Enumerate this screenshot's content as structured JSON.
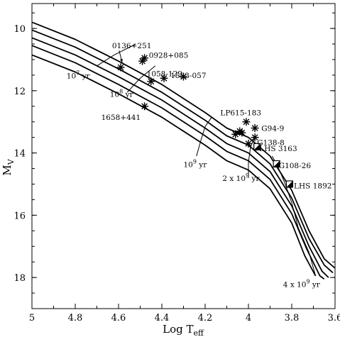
{
  "chart_data": {
    "type": "line",
    "xlabel": "Log T",
    "xlabel_sub": "eff",
    "ylabel": "M",
    "ylabel_sub": "V",
    "xlim": [
      5.0,
      3.6
    ],
    "ylim": [
      19.0,
      9.2
    ],
    "x_reversed": true,
    "y_reversed": true,
    "x_ticks": [
      5,
      4.8,
      4.6,
      4.4,
      4.2,
      4,
      3.8,
      3.6
    ],
    "x_tick_labels": [
      "5",
      "4.8",
      "4.6",
      "4.4",
      "4.2",
      "4",
      "3.8",
      "3.6"
    ],
    "y_ticks": [
      10,
      12,
      14,
      16,
      18
    ],
    "y_tick_labels": [
      "10",
      "12",
      "14",
      "16",
      "18"
    ],
    "grid": false,
    "legend": "none",
    "cooling_tracks": [
      {
        "points": [
          [
            5.0,
            9.8
          ],
          [
            4.8,
            10.35
          ],
          [
            4.6,
            11.05
          ],
          [
            4.4,
            11.8
          ],
          [
            4.2,
            12.7
          ],
          [
            4.1,
            13.2
          ],
          [
            4.0,
            13.5
          ],
          [
            3.9,
            14.1
          ],
          [
            3.8,
            15.2
          ],
          [
            3.72,
            16.5
          ],
          [
            3.65,
            17.4
          ],
          [
            3.6,
            17.7
          ]
        ]
      },
      {
        "points": [
          [
            5.0,
            10.05
          ],
          [
            4.8,
            10.6
          ],
          [
            4.6,
            11.3
          ],
          [
            4.4,
            12.05
          ],
          [
            4.2,
            12.95
          ],
          [
            4.1,
            13.45
          ],
          [
            4.0,
            13.75
          ],
          [
            3.9,
            14.35
          ],
          [
            3.8,
            15.45
          ],
          [
            3.72,
            16.75
          ],
          [
            3.65,
            17.6
          ],
          [
            3.61,
            17.85
          ]
        ]
      },
      {
        "points": [
          [
            5.0,
            10.3
          ],
          [
            4.8,
            10.85
          ],
          [
            4.6,
            11.55
          ],
          [
            4.4,
            12.3
          ],
          [
            4.2,
            13.2
          ],
          [
            4.1,
            13.7
          ],
          [
            4.0,
            14.0
          ],
          [
            3.9,
            14.6
          ],
          [
            3.8,
            15.7
          ],
          [
            3.72,
            17.0
          ],
          [
            3.66,
            17.8
          ],
          [
            3.63,
            18.0
          ]
        ]
      },
      {
        "points": [
          [
            5.0,
            10.55
          ],
          [
            4.8,
            11.1
          ],
          [
            4.6,
            11.8
          ],
          [
            4.4,
            12.55
          ],
          [
            4.2,
            13.45
          ],
          [
            4.1,
            13.95
          ],
          [
            4.0,
            14.25
          ],
          [
            3.9,
            14.85
          ],
          [
            3.8,
            15.95
          ],
          [
            3.73,
            17.1
          ],
          [
            3.67,
            17.95
          ],
          [
            3.65,
            18.05
          ]
        ]
      },
      {
        "points": [
          [
            5.0,
            10.85
          ],
          [
            4.8,
            11.4
          ],
          [
            4.6,
            12.1
          ],
          [
            4.4,
            12.85
          ],
          [
            4.2,
            13.75
          ],
          [
            4.1,
            14.25
          ],
          [
            4.0,
            14.55
          ],
          [
            3.9,
            15.15
          ],
          [
            3.8,
            16.25
          ],
          [
            3.74,
            17.3
          ],
          [
            3.69,
            17.95
          ]
        ]
      }
    ],
    "isochrones": [
      {
        "label": "10",
        "label_exp": "7",
        "label_unit": " yr",
        "label_at": [
          4.84,
          11.6
        ],
        "points": [
          [
            4.7,
            11.2
          ],
          [
            4.62,
            10.85
          ],
          [
            4.52,
            10.5
          ]
        ]
      },
      {
        "label": "10",
        "label_exp": "8",
        "label_unit": " yr",
        "label_at": [
          4.64,
          12.2
        ],
        "points": [
          [
            4.56,
            12.05
          ],
          [
            4.5,
            11.6
          ],
          [
            4.43,
            11.2
          ]
        ]
      },
      {
        "label": "10",
        "label_exp": "9",
        "label_unit": " yr",
        "label_at": [
          4.3,
          14.45
        ],
        "points": [
          [
            4.24,
            14.1
          ],
          [
            4.22,
            13.6
          ],
          [
            4.2,
            13.15
          ],
          [
            4.17,
            12.85
          ]
        ]
      },
      {
        "label": "2 x 10",
        "label_exp": "9",
        "label_unit": " yr",
        "label_at": [
          4.12,
          14.9
        ],
        "points": [
          [
            4.0,
            14.8
          ],
          [
            4.0,
            14.3
          ],
          [
            3.99,
            13.8
          ],
          [
            3.97,
            13.5
          ]
        ]
      },
      {
        "label": "4 x 10",
        "label_exp": "9",
        "label_unit": " yr",
        "label_at": [
          3.84,
          18.3
        ],
        "points": [
          [
            3.69,
            17.95
          ],
          [
            3.72,
            17.2
          ],
          [
            3.77,
            16.4
          ],
          [
            3.8,
            15.6
          ],
          [
            3.83,
            15.0
          ],
          [
            3.86,
            14.5
          ],
          [
            3.89,
            14.1
          ]
        ]
      }
    ],
    "stars": [
      {
        "name": "0136+251",
        "x": 4.59,
        "y": 11.25,
        "marker": "asterisk",
        "label_at": [
          4.63,
          10.55
        ],
        "arrow": true
      },
      {
        "name": "0928+085",
        "x": 4.48,
        "y": 10.95,
        "marker": "asterisk",
        "label_at": [
          4.46,
          10.85
        ]
      },
      {
        "name": "",
        "x": 4.49,
        "y": 11.05,
        "marker": "asterisk"
      },
      {
        "name": "1058-129",
        "x": 4.45,
        "y": 11.7,
        "marker": "asterisk",
        "label_at": [
          4.47,
          11.45
        ]
      },
      {
        "name": "",
        "x": 4.39,
        "y": 11.6,
        "marker": "asterisk"
      },
      {
        "name": "1533-057",
        "x": 4.3,
        "y": 11.55,
        "marker": "asterisk",
        "label_at": [
          4.36,
          11.5
        ]
      },
      {
        "name": "1658+441",
        "x": 4.48,
        "y": 12.5,
        "marker": "asterisk",
        "label_at": [
          4.68,
          12.85
        ]
      },
      {
        "name": "LP615-183",
        "x": 4.01,
        "y": 13.0,
        "marker": "asterisk",
        "label_at": [
          4.13,
          12.7
        ]
      },
      {
        "name": "",
        "x": 4.04,
        "y": 13.3,
        "marker": "asterisk"
      },
      {
        "name": "",
        "x": 4.06,
        "y": 13.4,
        "marker": "asterisk"
      },
      {
        "name": "",
        "x": 4.03,
        "y": 13.35,
        "marker": "asterisk"
      },
      {
        "name": "G94-9",
        "x": 3.97,
        "y": 13.2,
        "marker": "asterisk",
        "label_at": [
          3.94,
          13.2
        ]
      },
      {
        "name": "G138-8",
        "x": 3.97,
        "y": 13.5,
        "marker": "asterisk",
        "label_at": [
          3.96,
          13.65
        ]
      },
      {
        "name": "",
        "x": 4.0,
        "y": 13.7,
        "marker": "asterisk"
      },
      {
        "name": "LHS 3163",
        "x": 3.96,
        "y": 13.8,
        "marker": "square",
        "label_at": [
          3.95,
          13.85
        ]
      },
      {
        "name": "G108-26",
        "x": 3.87,
        "y": 14.35,
        "marker": "square",
        "label_at": [
          3.86,
          14.4
        ]
      },
      {
        "name": "LHS 1892",
        "x": 3.81,
        "y": 15.0,
        "marker": "square",
        "label_at": [
          3.79,
          15.05
        ]
      }
    ]
  }
}
